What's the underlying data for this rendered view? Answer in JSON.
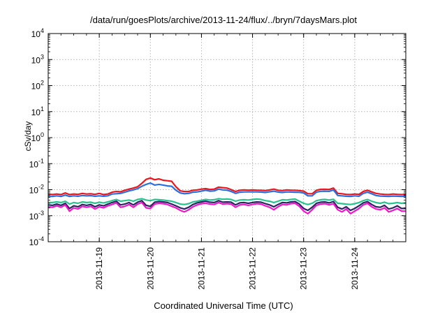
{
  "chart_data": {
    "type": "line",
    "title": "/data/run/goesPlots/archive/2013-11-24/flux/../bryn/7daysMars.plot",
    "xlabel": "Coordinated Universal Time (UTC)",
    "ylabel": "cSv/day",
    "yscale": "log",
    "ylim": [
      0.0001,
      10000
    ],
    "y_ticks": [
      {
        "value": 0.0001,
        "base": "10",
        "exp": "-4"
      },
      {
        "value": 0.001,
        "base": "10",
        "exp": "-3"
      },
      {
        "value": 0.01,
        "base": "10",
        "exp": "-2"
      },
      {
        "value": 0.1,
        "base": "10",
        "exp": "-1"
      },
      {
        "value": 1,
        "base": "10",
        "exp": "0"
      },
      {
        "value": 10,
        "base": "10",
        "exp": "1"
      },
      {
        "value": 100,
        "base": "10",
        "exp": "2"
      },
      {
        "value": 1000,
        "base": "10",
        "exp": "3"
      },
      {
        "value": 10000,
        "base": "10",
        "exp": "4"
      }
    ],
    "xlim": [
      "2013-11-18T00:00",
      "2013-11-25T00:00"
    ],
    "x_ticks": [
      "2013-11-19",
      "2013-11-20",
      "2013-11-21",
      "2013-11-22",
      "2013-11-23",
      "2013-11-24"
    ],
    "grid": true,
    "x": [
      "2013-11-18T00:00",
      "2013-11-18T02:00",
      "2013-11-18T04:00",
      "2013-11-18T06:00",
      "2013-11-18T08:00",
      "2013-11-18T10:00",
      "2013-11-18T12:00",
      "2013-11-18T14:00",
      "2013-11-18T16:00",
      "2013-11-18T18:00",
      "2013-11-18T20:00",
      "2013-11-18T22:00",
      "2013-11-19T00:00",
      "2013-11-19T02:00",
      "2013-11-19T04:00",
      "2013-11-19T06:00",
      "2013-11-19T08:00",
      "2013-11-19T10:00",
      "2013-11-19T12:00",
      "2013-11-19T14:00",
      "2013-11-19T16:00",
      "2013-11-19T18:00",
      "2013-11-19T20:00",
      "2013-11-19T22:00",
      "2013-11-20T00:00",
      "2013-11-20T02:00",
      "2013-11-20T04:00",
      "2013-11-20T06:00",
      "2013-11-20T08:00",
      "2013-11-20T10:00",
      "2013-11-20T12:00",
      "2013-11-20T14:00",
      "2013-11-20T16:00",
      "2013-11-20T18:00",
      "2013-11-20T20:00",
      "2013-11-20T22:00",
      "2013-11-21T00:00",
      "2013-11-21T02:00",
      "2013-11-21T04:00",
      "2013-11-21T06:00",
      "2013-11-21T08:00",
      "2013-11-21T10:00",
      "2013-11-21T12:00",
      "2013-11-21T14:00",
      "2013-11-21T16:00",
      "2013-11-21T18:00",
      "2013-11-21T20:00",
      "2013-11-21T22:00",
      "2013-11-22T00:00",
      "2013-11-22T02:00",
      "2013-11-22T04:00",
      "2013-11-22T06:00",
      "2013-11-22T08:00",
      "2013-11-22T10:00",
      "2013-11-22T12:00",
      "2013-11-22T14:00",
      "2013-11-22T16:00",
      "2013-11-22T18:00",
      "2013-11-22T20:00",
      "2013-11-22T22:00",
      "2013-11-23T00:00",
      "2013-11-23T02:00",
      "2013-11-23T04:00",
      "2013-11-23T06:00",
      "2013-11-23T08:00",
      "2013-11-23T10:00",
      "2013-11-23T12:00",
      "2013-11-23T14:00",
      "2013-11-23T16:00",
      "2013-11-23T18:00",
      "2013-11-23T20:00",
      "2013-11-23T22:00",
      "2013-11-24T00:00",
      "2013-11-24T02:00",
      "2013-11-24T04:00",
      "2013-11-24T06:00",
      "2013-11-24T08:00",
      "2013-11-24T10:00",
      "2013-11-24T12:00",
      "2013-11-24T14:00",
      "2013-11-24T16:00",
      "2013-11-24T18:00",
      "2013-11-24T20:00",
      "2013-11-24T22:00",
      "2013-11-25T00:00"
    ],
    "series": [
      {
        "color": "#e8171e",
        "values": [
          0.0068,
          0.0065,
          0.0068,
          0.0065,
          0.0075,
          0.0065,
          0.0068,
          0.0066,
          0.0072,
          0.0068,
          0.007,
          0.0066,
          0.0072,
          0.0065,
          0.0068,
          0.008,
          0.0085,
          0.0083,
          0.0095,
          0.0105,
          0.0115,
          0.013,
          0.0175,
          0.025,
          0.028,
          0.024,
          0.026,
          0.023,
          0.022,
          0.021,
          0.013,
          0.009,
          0.0085,
          0.0085,
          0.0095,
          0.0098,
          0.0105,
          0.011,
          0.0102,
          0.0105,
          0.0125,
          0.012,
          0.0115,
          0.01,
          0.0085,
          0.0095,
          0.0098,
          0.0096,
          0.0098,
          0.0096,
          0.0095,
          0.0092,
          0.0098,
          0.0105,
          0.0095,
          0.0092,
          0.0098,
          0.0096,
          0.0095,
          0.0092,
          0.0088,
          0.007,
          0.007,
          0.0095,
          0.0103,
          0.0104,
          0.0102,
          0.0115,
          0.0072,
          0.007,
          0.0066,
          0.0065,
          0.0068,
          0.0066,
          0.0085,
          0.0095,
          0.0082,
          0.0072,
          0.0068,
          0.0066,
          0.0065,
          0.0068,
          0.0066,
          0.0065,
          0.0066
        ]
      },
      {
        "color": "#2b6fdd",
        "values": [
          0.0055,
          0.0055,
          0.0058,
          0.0055,
          0.0062,
          0.0055,
          0.0058,
          0.0056,
          0.006,
          0.0058,
          0.0059,
          0.0056,
          0.0058,
          0.0056,
          0.0058,
          0.0068,
          0.007,
          0.0072,
          0.008,
          0.009,
          0.0098,
          0.011,
          0.0135,
          0.016,
          0.018,
          0.015,
          0.016,
          0.015,
          0.014,
          0.0135,
          0.0095,
          0.0075,
          0.007,
          0.0072,
          0.008,
          0.0082,
          0.0088,
          0.0095,
          0.0088,
          0.009,
          0.0105,
          0.0098,
          0.0096,
          0.0085,
          0.0072,
          0.008,
          0.0082,
          0.0082,
          0.0083,
          0.0082,
          0.0081,
          0.0078,
          0.0083,
          0.0088,
          0.0081,
          0.0078,
          0.0082,
          0.0081,
          0.008,
          0.0079,
          0.0075,
          0.0058,
          0.0058,
          0.008,
          0.0087,
          0.0088,
          0.0086,
          0.0098,
          0.006,
          0.0058,
          0.0056,
          0.0055,
          0.0058,
          0.0056,
          0.0072,
          0.008,
          0.007,
          0.006,
          0.0057,
          0.0056,
          0.0055,
          0.0057,
          0.0056,
          0.0055,
          0.0056
        ]
      },
      {
        "color": "#27c28e",
        "values": [
          0.0032,
          0.0032,
          0.0034,
          0.0032,
          0.0036,
          0.0028,
          0.0032,
          0.003,
          0.0034,
          0.0032,
          0.0033,
          0.003,
          0.0033,
          0.0031,
          0.0034,
          0.0038,
          0.0042,
          0.0036,
          0.0038,
          0.004,
          0.0036,
          0.0042,
          0.0045,
          0.004,
          0.0038,
          0.0042,
          0.0041,
          0.004,
          0.0038,
          0.0036,
          0.0032,
          0.0028,
          0.0027,
          0.0029,
          0.0034,
          0.0036,
          0.0039,
          0.0042,
          0.004,
          0.0041,
          0.0045,
          0.0043,
          0.0044,
          0.0042,
          0.0036,
          0.004,
          0.0041,
          0.004,
          0.0042,
          0.0044,
          0.0042,
          0.0038,
          0.0036,
          0.0032,
          0.0036,
          0.0041,
          0.004,
          0.0042,
          0.0044,
          0.0036,
          0.003,
          0.0027,
          0.003,
          0.0038,
          0.0041,
          0.0042,
          0.004,
          0.0043,
          0.003,
          0.0029,
          0.0028,
          0.0027,
          0.0029,
          0.0032,
          0.0038,
          0.0042,
          0.0036,
          0.0032,
          0.003,
          0.0033,
          0.0029,
          0.003,
          0.0032,
          0.003,
          0.0031
        ]
      },
      {
        "color": "#2b2460",
        "values": [
          0.0026,
          0.0025,
          0.0028,
          0.0025,
          0.003,
          0.0019,
          0.0024,
          0.0022,
          0.0027,
          0.0025,
          0.0027,
          0.0022,
          0.0026,
          0.0024,
          0.0028,
          0.0032,
          0.0036,
          0.0026,
          0.0028,
          0.0032,
          0.0026,
          0.0033,
          0.0038,
          0.0025,
          0.0023,
          0.0033,
          0.0035,
          0.0034,
          0.0032,
          0.0028,
          0.0024,
          0.002,
          0.0018,
          0.0021,
          0.0027,
          0.0031,
          0.0034,
          0.0036,
          0.0033,
          0.0032,
          0.0038,
          0.0033,
          0.0034,
          0.0033,
          0.0026,
          0.0031,
          0.0032,
          0.003,
          0.0032,
          0.0034,
          0.0033,
          0.0029,
          0.0026,
          0.0022,
          0.0027,
          0.0032,
          0.0031,
          0.0034,
          0.0035,
          0.0028,
          0.0019,
          0.0016,
          0.0021,
          0.003,
          0.0033,
          0.0034,
          0.0031,
          0.0035,
          0.0021,
          0.0018,
          0.0022,
          0.0016,
          0.0019,
          0.0024,
          0.0031,
          0.0035,
          0.0027,
          0.0022,
          0.0021,
          0.0025,
          0.0018,
          0.002,
          0.0024,
          0.0019,
          0.0019
        ]
      },
      {
        "color": "#f016c9",
        "values": [
          0.0022,
          0.0021,
          0.0024,
          0.0021,
          0.0026,
          0.0015,
          0.002,
          0.0018,
          0.0023,
          0.0021,
          0.0023,
          0.0018,
          0.0022,
          0.002,
          0.0024,
          0.0027,
          0.0031,
          0.0021,
          0.0023,
          0.0027,
          0.0021,
          0.0028,
          0.0032,
          0.002,
          0.0019,
          0.0028,
          0.003,
          0.0029,
          0.0027,
          0.0023,
          0.002,
          0.0016,
          0.0014,
          0.0017,
          0.0022,
          0.0026,
          0.0029,
          0.003,
          0.0028,
          0.0027,
          0.0032,
          0.0028,
          0.0029,
          0.0028,
          0.0021,
          0.0026,
          0.0027,
          0.0025,
          0.0027,
          0.0029,
          0.0028,
          0.0024,
          0.0021,
          0.0017,
          0.0022,
          0.0027,
          0.0026,
          0.0029,
          0.003,
          0.0023,
          0.0015,
          0.0012,
          0.0017,
          0.0025,
          0.0028,
          0.0029,
          0.0026,
          0.0029,
          0.0017,
          0.0014,
          0.0018,
          0.0012,
          0.0015,
          0.0019,
          0.0026,
          0.003,
          0.0022,
          0.0018,
          0.0017,
          0.002,
          0.0014,
          0.0016,
          0.0019,
          0.0015,
          0.0015
        ]
      }
    ]
  }
}
